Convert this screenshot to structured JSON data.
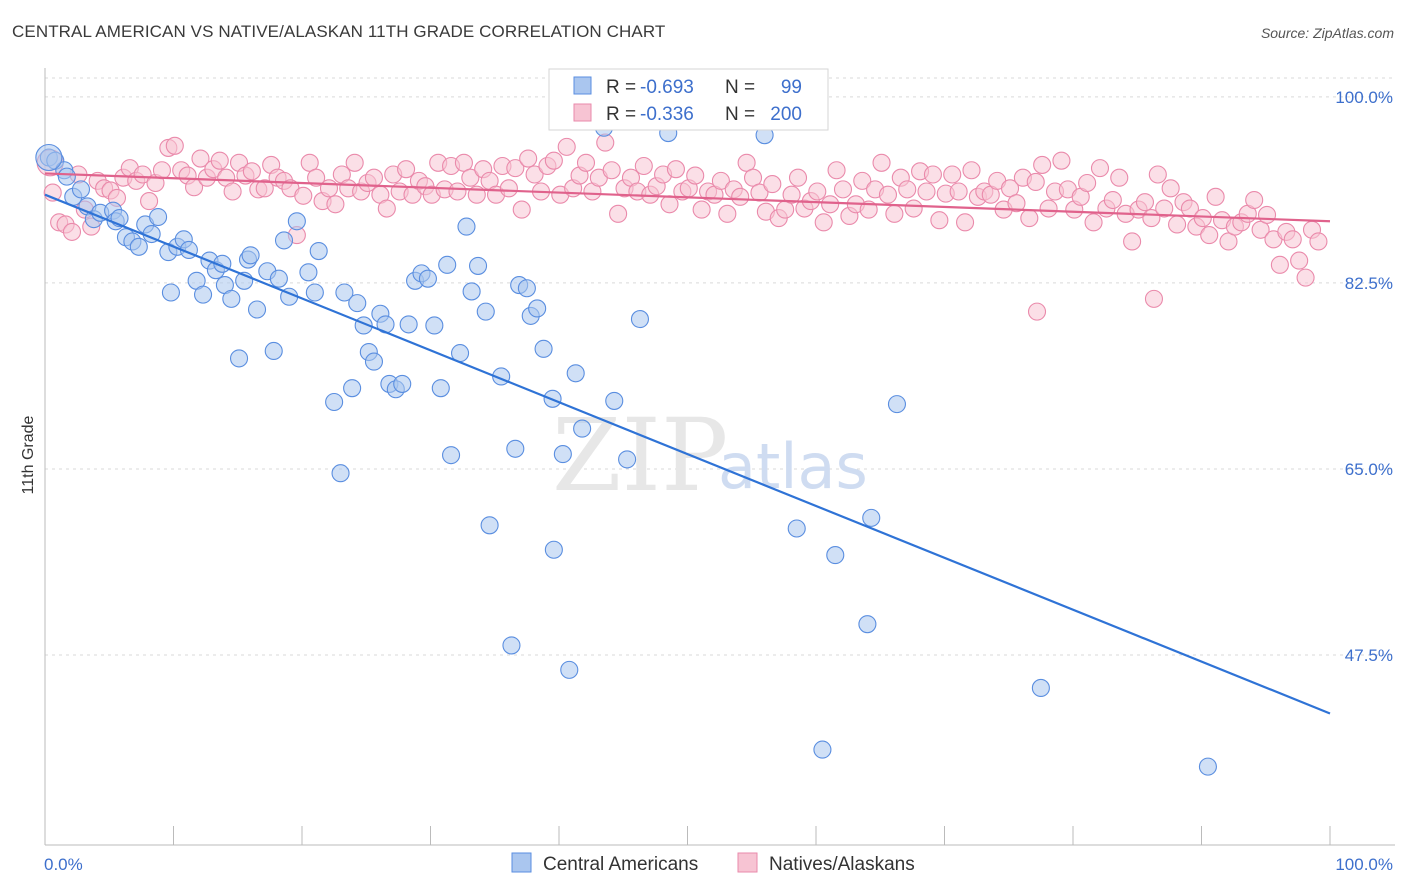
{
  "title": "CENTRAL AMERICAN VS NATIVE/ALASKAN 11TH GRADE CORRELATION CHART",
  "source": "Source: ZipAtlas.com",
  "watermark": {
    "part1": "ZIP",
    "part2": "atlas"
  },
  "colors": {
    "blue_fill": "#aac6ef",
    "blue_stroke": "#5a8ee0",
    "blue_line": "#2f73d6",
    "pink_fill": "#f7c4d3",
    "pink_stroke": "#ea8aab",
    "pink_line": "#e0628c",
    "tick_text": "#3d6fcc",
    "grid": "#d9d9d9"
  },
  "legend_stats": [
    {
      "r_label": "R =",
      "r_value": "-0.693",
      "n_label": "N =",
      "n_value": "99"
    },
    {
      "r_label": "R =",
      "r_value": "-0.336",
      "n_label": "N =",
      "n_value": "200"
    }
  ],
  "chart_data": {
    "type": "scatter",
    "title": "CENTRAL AMERICAN VS NATIVE/ALASKAN 11TH GRADE CORRELATION CHART",
    "xlabel": "",
    "ylabel": "11th Grade",
    "xlim": [
      0,
      100
    ],
    "ylim": [
      34.0,
      102.5
    ],
    "x_tick_labels": [
      "0.0%",
      "100.0%"
    ],
    "y_ticks": [
      47.5,
      65.0,
      82.5,
      100.0
    ],
    "y_tick_labels": [
      "47.5%",
      "65.0%",
      "82.5%",
      "100.0%"
    ],
    "grid": true,
    "legend_position": "bottom-center",
    "series": [
      {
        "name": "Central Americans",
        "r": -0.693,
        "n": 99,
        "trend": {
          "x": [
            0,
            100
          ],
          "y": [
            90.8,
            42.0
          ]
        },
        "points": [
          [
            0.3,
            94.3
          ],
          [
            0.8,
            94.0
          ],
          [
            1.5,
            93.1
          ],
          [
            1.7,
            92.5
          ],
          [
            2.2,
            90.6
          ],
          [
            2.8,
            91.3
          ],
          [
            3.3,
            89.7
          ],
          [
            3.8,
            88.5
          ],
          [
            4.3,
            89.1
          ],
          [
            5.3,
            89.3
          ],
          [
            5.5,
            88.3
          ],
          [
            5.8,
            88.6
          ],
          [
            6.3,
            86.8
          ],
          [
            6.8,
            86.4
          ],
          [
            7.3,
            85.9
          ],
          [
            7.8,
            88.0
          ],
          [
            8.3,
            87.1
          ],
          [
            8.8,
            88.7
          ],
          [
            9.6,
            85.4
          ],
          [
            9.8,
            81.6
          ],
          [
            10.3,
            85.9
          ],
          [
            10.8,
            86.6
          ],
          [
            11.2,
            85.6
          ],
          [
            11.8,
            82.7
          ],
          [
            12.3,
            81.4
          ],
          [
            12.8,
            84.6
          ],
          [
            13.3,
            83.7
          ],
          [
            13.8,
            84.3
          ],
          [
            14.0,
            82.3
          ],
          [
            14.5,
            81.0
          ],
          [
            15.1,
            75.4
          ],
          [
            15.5,
            82.7
          ],
          [
            15.8,
            84.7
          ],
          [
            16.0,
            85.1
          ],
          [
            16.5,
            80.0
          ],
          [
            17.3,
            83.6
          ],
          [
            17.8,
            76.1
          ],
          [
            18.2,
            82.9
          ],
          [
            18.6,
            86.5
          ],
          [
            19.0,
            81.2
          ],
          [
            19.6,
            88.3
          ],
          [
            20.5,
            83.5
          ],
          [
            21.0,
            81.6
          ],
          [
            21.3,
            85.5
          ],
          [
            22.5,
            71.3
          ],
          [
            23.0,
            64.6
          ],
          [
            23.3,
            81.6
          ],
          [
            23.9,
            72.6
          ],
          [
            24.3,
            80.6
          ],
          [
            24.8,
            78.5
          ],
          [
            25.2,
            76.0
          ],
          [
            25.6,
            75.1
          ],
          [
            26.1,
            79.6
          ],
          [
            26.5,
            78.6
          ],
          [
            26.8,
            73.0
          ],
          [
            27.3,
            72.5
          ],
          [
            27.8,
            73.0
          ],
          [
            28.3,
            78.6
          ],
          [
            28.8,
            82.7
          ],
          [
            29.3,
            83.4
          ],
          [
            29.8,
            82.9
          ],
          [
            30.3,
            78.5
          ],
          [
            30.8,
            72.6
          ],
          [
            31.3,
            84.2
          ],
          [
            31.6,
            66.3
          ],
          [
            32.3,
            75.9
          ],
          [
            32.8,
            87.8
          ],
          [
            33.2,
            81.7
          ],
          [
            33.7,
            84.1
          ],
          [
            34.3,
            79.8
          ],
          [
            34.6,
            59.7
          ],
          [
            35.5,
            73.7
          ],
          [
            36.3,
            48.4
          ],
          [
            36.6,
            66.9
          ],
          [
            36.9,
            82.3
          ],
          [
            37.5,
            82.0
          ],
          [
            37.8,
            79.4
          ],
          [
            38.3,
            80.1
          ],
          [
            38.8,
            76.3
          ],
          [
            39.5,
            71.6
          ],
          [
            39.6,
            57.4
          ],
          [
            40.3,
            66.4
          ],
          [
            40.8,
            46.1
          ],
          [
            41.3,
            74.0
          ],
          [
            41.8,
            68.8
          ],
          [
            43.5,
            97.1
          ],
          [
            44.3,
            71.4
          ],
          [
            45.3,
            65.9
          ],
          [
            46.3,
            79.1
          ],
          [
            48.5,
            96.6
          ],
          [
            48.8,
            99.9
          ],
          [
            56.0,
            96.4
          ],
          [
            58.5,
            59.4
          ],
          [
            60.5,
            38.6
          ],
          [
            61.5,
            56.9
          ],
          [
            64.0,
            50.4
          ],
          [
            64.3,
            60.4
          ],
          [
            66.3,
            71.1
          ],
          [
            77.5,
            44.4
          ],
          [
            90.5,
            37.0
          ]
        ]
      },
      {
        "name": "Natives/Alaskans",
        "r": -0.336,
        "n": 200,
        "trend": {
          "x": [
            0,
            100
          ],
          "y": [
            92.8,
            88.3
          ]
        },
        "points": [
          [
            0.6,
            91.0
          ],
          [
            1.1,
            88.2
          ],
          [
            1.6,
            88.0
          ],
          [
            2.1,
            87.3
          ],
          [
            2.6,
            92.7
          ],
          [
            3.1,
            89.4
          ],
          [
            3.6,
            87.8
          ],
          [
            4.1,
            92.1
          ],
          [
            4.6,
            91.4
          ],
          [
            5.1,
            91.2
          ],
          [
            5.6,
            90.5
          ],
          [
            6.1,
            92.4
          ],
          [
            6.6,
            93.3
          ],
          [
            7.1,
            92.1
          ],
          [
            7.6,
            92.7
          ],
          [
            8.1,
            90.2
          ],
          [
            8.6,
            91.9
          ],
          [
            9.1,
            93.1
          ],
          [
            9.6,
            95.2
          ],
          [
            10.1,
            95.4
          ],
          [
            10.6,
            93.1
          ],
          [
            11.1,
            92.6
          ],
          [
            11.6,
            91.5
          ],
          [
            12.1,
            94.2
          ],
          [
            12.6,
            92.4
          ],
          [
            13.1,
            93.2
          ],
          [
            13.6,
            94.0
          ],
          [
            14.1,
            92.4
          ],
          [
            14.6,
            91.1
          ],
          [
            15.1,
            93.8
          ],
          [
            15.6,
            92.6
          ],
          [
            16.1,
            93.0
          ],
          [
            16.6,
            91.3
          ],
          [
            17.1,
            91.4
          ],
          [
            17.6,
            93.6
          ],
          [
            18.1,
            92.4
          ],
          [
            18.6,
            92.1
          ],
          [
            19.1,
            91.4
          ],
          [
            19.6,
            87.0
          ],
          [
            20.1,
            90.7
          ],
          [
            20.6,
            93.8
          ],
          [
            21.1,
            92.4
          ],
          [
            21.6,
            90.2
          ],
          [
            22.1,
            91.4
          ],
          [
            22.6,
            89.9
          ],
          [
            23.1,
            92.7
          ],
          [
            23.6,
            91.4
          ],
          [
            24.1,
            93.8
          ],
          [
            24.6,
            91.1
          ],
          [
            25.1,
            91.9
          ],
          [
            25.6,
            92.4
          ],
          [
            26.1,
            90.8
          ],
          [
            26.6,
            89.5
          ],
          [
            27.1,
            92.7
          ],
          [
            27.6,
            91.1
          ],
          [
            28.1,
            93.2
          ],
          [
            28.6,
            90.8
          ],
          [
            29.1,
            92.1
          ],
          [
            29.6,
            91.6
          ],
          [
            30.1,
            90.8
          ],
          [
            30.6,
            93.8
          ],
          [
            31.1,
            91.3
          ],
          [
            31.6,
            93.5
          ],
          [
            32.1,
            91.1
          ],
          [
            32.6,
            93.8
          ],
          [
            33.1,
            92.4
          ],
          [
            33.6,
            90.8
          ],
          [
            34.1,
            93.2
          ],
          [
            34.6,
            92.1
          ],
          [
            35.1,
            90.8
          ],
          [
            35.6,
            93.5
          ],
          [
            36.1,
            91.4
          ],
          [
            36.6,
            93.3
          ],
          [
            37.1,
            89.4
          ],
          [
            37.6,
            94.2
          ],
          [
            38.1,
            92.7
          ],
          [
            38.6,
            91.1
          ],
          [
            39.1,
            93.5
          ],
          [
            39.6,
            94.0
          ],
          [
            40.1,
            90.8
          ],
          [
            40.6,
            95.3
          ],
          [
            41.1,
            91.4
          ],
          [
            41.6,
            92.6
          ],
          [
            42.1,
            93.8
          ],
          [
            42.6,
            91.1
          ],
          [
            43.1,
            92.4
          ],
          [
            43.6,
            95.7
          ],
          [
            44.1,
            93.1
          ],
          [
            44.6,
            89.0
          ],
          [
            45.1,
            91.4
          ],
          [
            45.6,
            92.4
          ],
          [
            46.1,
            91.1
          ],
          [
            46.6,
            93.5
          ],
          [
            47.1,
            90.8
          ],
          [
            47.6,
            91.6
          ],
          [
            48.1,
            92.7
          ],
          [
            48.6,
            89.9
          ],
          [
            49.1,
            93.2
          ],
          [
            49.6,
            91.1
          ],
          [
            50.1,
            91.4
          ],
          [
            50.6,
            92.6
          ],
          [
            51.1,
            89.4
          ],
          [
            51.6,
            91.1
          ],
          [
            52.1,
            90.8
          ],
          [
            52.6,
            92.1
          ],
          [
            53.1,
            89.0
          ],
          [
            53.6,
            91.3
          ],
          [
            54.1,
            90.6
          ],
          [
            54.6,
            93.8
          ],
          [
            55.1,
            92.4
          ],
          [
            55.6,
            91.0
          ],
          [
            56.1,
            89.2
          ],
          [
            56.6,
            91.8
          ],
          [
            57.1,
            88.6
          ],
          [
            57.6,
            89.4
          ],
          [
            58.1,
            90.8
          ],
          [
            58.6,
            92.4
          ],
          [
            59.1,
            89.5
          ],
          [
            59.6,
            90.2
          ],
          [
            60.1,
            91.1
          ],
          [
            60.6,
            88.2
          ],
          [
            61.1,
            89.9
          ],
          [
            61.6,
            93.1
          ],
          [
            62.1,
            91.3
          ],
          [
            62.6,
            88.8
          ],
          [
            63.1,
            89.9
          ],
          [
            63.6,
            92.1
          ],
          [
            64.1,
            89.4
          ],
          [
            64.6,
            91.3
          ],
          [
            65.1,
            93.8
          ],
          [
            65.6,
            90.8
          ],
          [
            66.1,
            89.0
          ],
          [
            66.6,
            92.4
          ],
          [
            67.1,
            91.3
          ],
          [
            67.6,
            89.5
          ],
          [
            68.1,
            93.0
          ],
          [
            68.6,
            91.1
          ],
          [
            69.1,
            92.7
          ],
          [
            69.6,
            88.4
          ],
          [
            70.1,
            90.9
          ],
          [
            70.6,
            92.7
          ],
          [
            71.1,
            91.1
          ],
          [
            71.6,
            88.2
          ],
          [
            72.1,
            93.1
          ],
          [
            72.6,
            90.6
          ],
          [
            73.1,
            91.1
          ],
          [
            73.6,
            90.8
          ],
          [
            74.1,
            92.1
          ],
          [
            74.6,
            89.4
          ],
          [
            75.1,
            91.4
          ],
          [
            75.6,
            90.0
          ],
          [
            76.1,
            92.4
          ],
          [
            76.6,
            88.6
          ],
          [
            77.1,
            92.0
          ],
          [
            77.6,
            93.6
          ],
          [
            78.1,
            89.5
          ],
          [
            78.6,
            91.1
          ],
          [
            79.1,
            94.0
          ],
          [
            79.6,
            91.3
          ],
          [
            80.1,
            89.4
          ],
          [
            80.6,
            90.6
          ],
          [
            81.1,
            91.9
          ],
          [
            81.6,
            88.2
          ],
          [
            82.1,
            93.3
          ],
          [
            82.6,
            89.5
          ],
          [
            83.1,
            90.3
          ],
          [
            83.6,
            92.4
          ],
          [
            84.1,
            89.0
          ],
          [
            84.6,
            86.4
          ],
          [
            85.1,
            89.4
          ],
          [
            85.6,
            90.1
          ],
          [
            86.1,
            88.6
          ],
          [
            86.6,
            92.7
          ],
          [
            87.1,
            89.5
          ],
          [
            87.6,
            91.4
          ],
          [
            88.1,
            88.0
          ],
          [
            88.6,
            90.1
          ],
          [
            89.1,
            89.5
          ],
          [
            89.6,
            87.8
          ],
          [
            90.1,
            88.6
          ],
          [
            90.6,
            87.0
          ],
          [
            91.1,
            90.6
          ],
          [
            91.6,
            88.4
          ],
          [
            92.1,
            86.4
          ],
          [
            92.6,
            87.8
          ],
          [
            93.1,
            88.2
          ],
          [
            93.6,
            89.0
          ],
          [
            94.1,
            90.3
          ],
          [
            94.6,
            87.5
          ],
          [
            95.1,
            88.9
          ],
          [
            95.6,
            86.6
          ],
          [
            96.1,
            84.2
          ],
          [
            96.6,
            87.3
          ],
          [
            97.1,
            86.6
          ],
          [
            97.6,
            84.6
          ],
          [
            98.1,
            83.0
          ],
          [
            98.6,
            87.5
          ],
          [
            99.1,
            86.4
          ],
          [
            86.3,
            81.0
          ],
          [
            77.2,
            79.8
          ]
        ]
      }
    ]
  },
  "legend": [
    {
      "label": "Central Americans"
    },
    {
      "label": "Natives/Alaskans"
    }
  ]
}
